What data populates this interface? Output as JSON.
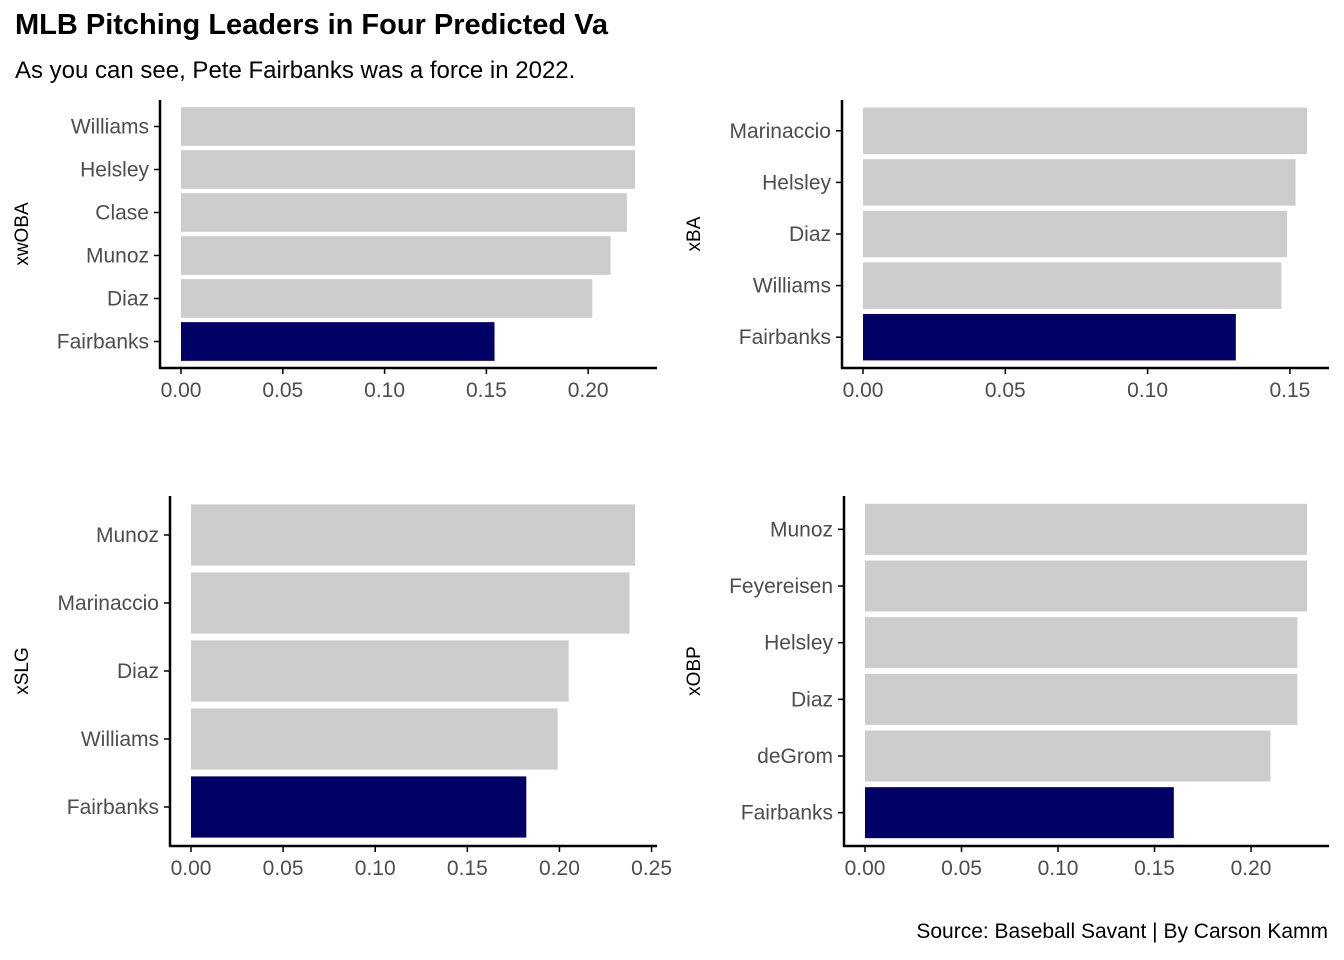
{
  "title": "MLB Pitching Leaders in Four Predicted Va",
  "subtitle": "As you can see, Pete Fairbanks was a force in 2022.",
  "caption": "Source: Baseball Savant | By Carson Kamm",
  "colors": {
    "highlight": "#000066",
    "other": "#cccccc",
    "axis": "#000000",
    "tick_text": "#4d4d4d"
  },
  "chart_data": [
    {
      "type": "bar",
      "orientation": "horizontal",
      "ylabel": "xwOBA",
      "categories": [
        "Fairbanks",
        "Diaz",
        "Munoz",
        "Clase",
        "Helsley",
        "Williams"
      ],
      "values": [
        0.154,
        0.202,
        0.211,
        0.219,
        0.223,
        0.223
      ],
      "highlight": "Fairbanks",
      "xlim": [
        0,
        0.223
      ],
      "xticks": [
        0.0,
        0.05,
        0.1,
        0.15,
        0.2
      ],
      "xtick_labels": [
        "0.00",
        "0.05",
        "0.10",
        "0.15",
        "0.20"
      ],
      "grid": false
    },
    {
      "type": "bar",
      "orientation": "horizontal",
      "ylabel": "xBA",
      "categories": [
        "Fairbanks",
        "Williams",
        "Diaz",
        "Helsley",
        "Marinaccio"
      ],
      "values": [
        0.131,
        0.147,
        0.149,
        0.152,
        0.156
      ],
      "highlight": "Fairbanks",
      "xlim": [
        0,
        0.156
      ],
      "xticks": [
        0.0,
        0.05,
        0.1,
        0.15
      ],
      "xtick_labels": [
        "0.00",
        "0.05",
        "0.10",
        "0.15"
      ],
      "grid": false
    },
    {
      "type": "bar",
      "orientation": "horizontal",
      "ylabel": "xSLG",
      "categories": [
        "Fairbanks",
        "Williams",
        "Diaz",
        "Marinaccio",
        "Munoz"
      ],
      "values": [
        0.182,
        0.199,
        0.205,
        0.238,
        0.241
      ],
      "highlight": "Fairbanks",
      "xlim": [
        0,
        0.241
      ],
      "xticks": [
        0.0,
        0.05,
        0.1,
        0.15,
        0.2,
        0.25
      ],
      "xtick_labels": [
        "0.00",
        "0.05",
        "0.10",
        "0.15",
        "0.20",
        "0.25"
      ],
      "grid": false
    },
    {
      "type": "bar",
      "orientation": "horizontal",
      "ylabel": "xOBP",
      "categories": [
        "Fairbanks",
        "deGrom",
        "Diaz",
        "Helsley",
        "Feyereisen",
        "Munoz"
      ],
      "values": [
        0.16,
        0.21,
        0.224,
        0.224,
        0.229,
        0.229
      ],
      "highlight": "Fairbanks",
      "xlim": [
        0,
        0.229
      ],
      "xticks": [
        0.0,
        0.05,
        0.1,
        0.15,
        0.2
      ],
      "xtick_labels": [
        "0.00",
        "0.05",
        "0.10",
        "0.15",
        "0.20"
      ],
      "grid": false
    }
  ]
}
